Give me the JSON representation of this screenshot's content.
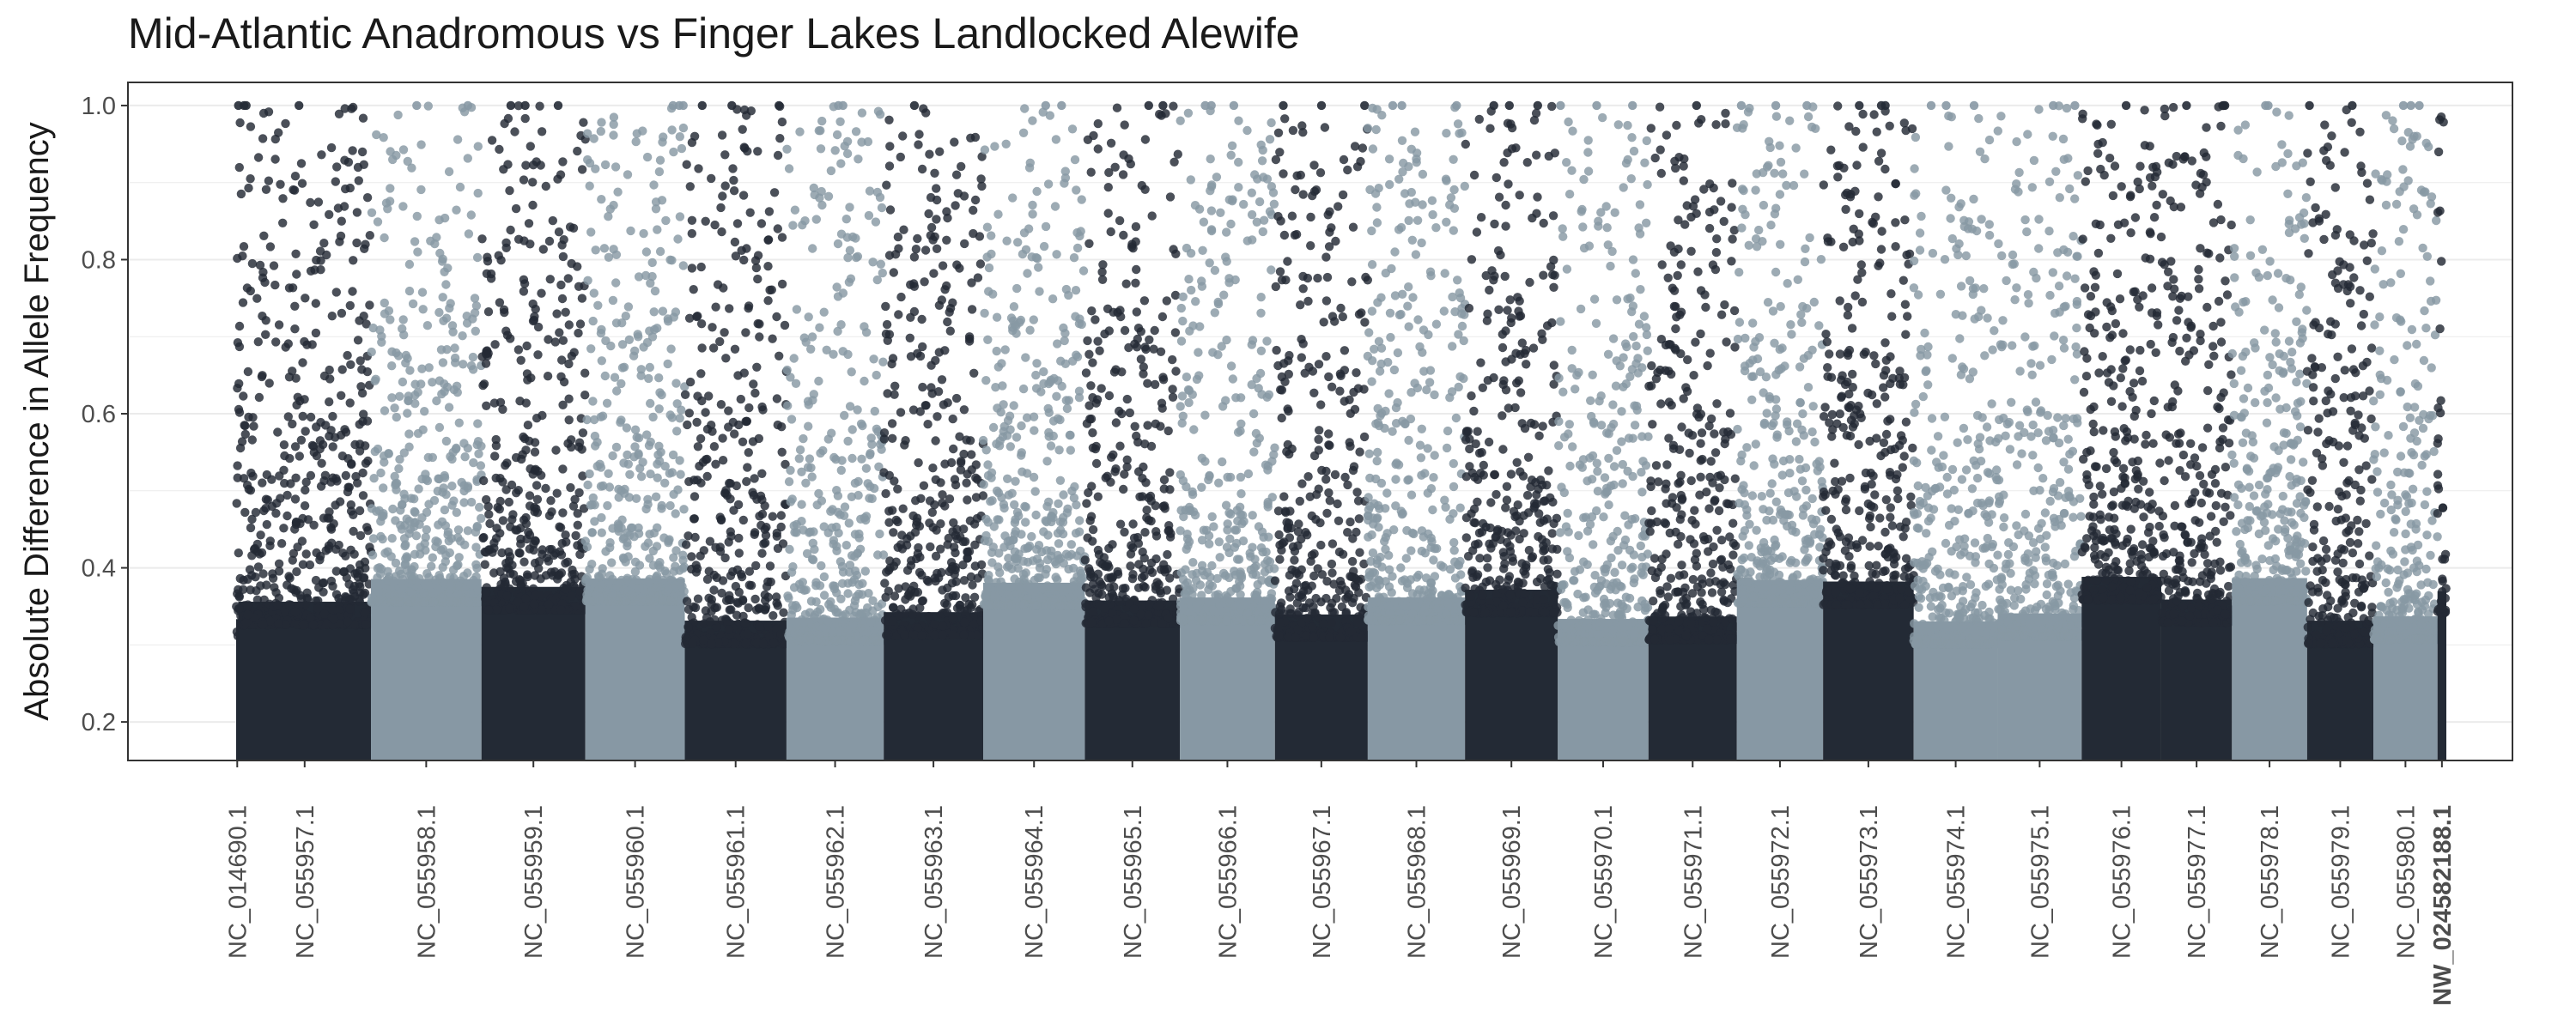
{
  "chart_data": {
    "type": "scatter",
    "title": "Mid-Atlantic Anadromous vs Finger Lakes Landlocked Alewife",
    "xlabel": "",
    "ylabel": "Absolute Difference in Allele Frequency",
    "ylim": [
      0.15,
      1.03
    ],
    "yticks": [
      0.2,
      0.4,
      0.6,
      0.8,
      1.0
    ],
    "ytick_labels": [
      "0.2",
      "0.4",
      "0.6",
      "0.8",
      "1.0"
    ],
    "grid": true,
    "legend": "none",
    "colors": {
      "dark": "#232a35",
      "light": "#8798a4",
      "grid": "#ebebeb",
      "border": "#333333"
    },
    "chromosomes": [
      {
        "name": "NC_014690.1",
        "color": "dark",
        "start": 0.0,
        "end": 0.001
      },
      {
        "name": "NC_055957.1",
        "color": "dark",
        "start": 0.001,
        "end": 0.061
      },
      {
        "name": "NC_055958.1",
        "color": "light",
        "start": 0.061,
        "end": 0.111
      },
      {
        "name": "NC_055959.1",
        "color": "dark",
        "start": 0.111,
        "end": 0.158
      },
      {
        "name": "NC_055960.1",
        "color": "light",
        "start": 0.158,
        "end": 0.203
      },
      {
        "name": "NC_055961.1",
        "color": "dark",
        "start": 0.203,
        "end": 0.249
      },
      {
        "name": "NC_055962.1",
        "color": "light",
        "start": 0.249,
        "end": 0.293
      },
      {
        "name": "NC_055963.1",
        "color": "dark",
        "start": 0.293,
        "end": 0.338
      },
      {
        "name": "NC_055964.1",
        "color": "light",
        "start": 0.338,
        "end": 0.384
      },
      {
        "name": "NC_055965.1",
        "color": "dark",
        "start": 0.384,
        "end": 0.427
      },
      {
        "name": "NC_055966.1",
        "color": "light",
        "start": 0.427,
        "end": 0.47
      },
      {
        "name": "NC_055967.1",
        "color": "dark",
        "start": 0.47,
        "end": 0.512
      },
      {
        "name": "NC_055968.1",
        "color": "light",
        "start": 0.512,
        "end": 0.556
      },
      {
        "name": "NC_055969.1",
        "color": "dark",
        "start": 0.556,
        "end": 0.598
      },
      {
        "name": "NC_055970.1",
        "color": "light",
        "start": 0.598,
        "end": 0.639
      },
      {
        "name": "NC_055971.1",
        "color": "dark",
        "start": 0.639,
        "end": 0.679
      },
      {
        "name": "NC_055972.1",
        "color": "light",
        "start": 0.679,
        "end": 0.718
      },
      {
        "name": "NC_055973.1",
        "color": "dark",
        "start": 0.718,
        "end": 0.759
      },
      {
        "name": "NC_055974.1",
        "color": "light",
        "start": 0.759,
        "end": 0.797
      },
      {
        "name": "NC_055975.1",
        "color": "light",
        "start": 0.797,
        "end": 0.835
      },
      {
        "name": "NC_055976.1",
        "color": "dark",
        "start": 0.835,
        "end": 0.871
      },
      {
        "name": "NC_055977.1",
        "color": "dark",
        "start": 0.871,
        "end": 0.903
      },
      {
        "name": "NC_055978.1",
        "color": "light",
        "start": 0.903,
        "end": 0.937
      },
      {
        "name": "NC_055979.1",
        "color": "dark",
        "start": 0.937,
        "end": 0.967
      },
      {
        "name": "NC_055980.1",
        "color": "light",
        "start": 0.967,
        "end": 0.996
      },
      {
        "name": "NW_024582188.1",
        "color": "dark",
        "start": 0.996,
        "end": 1.0,
        "bold": true
      }
    ]
  }
}
